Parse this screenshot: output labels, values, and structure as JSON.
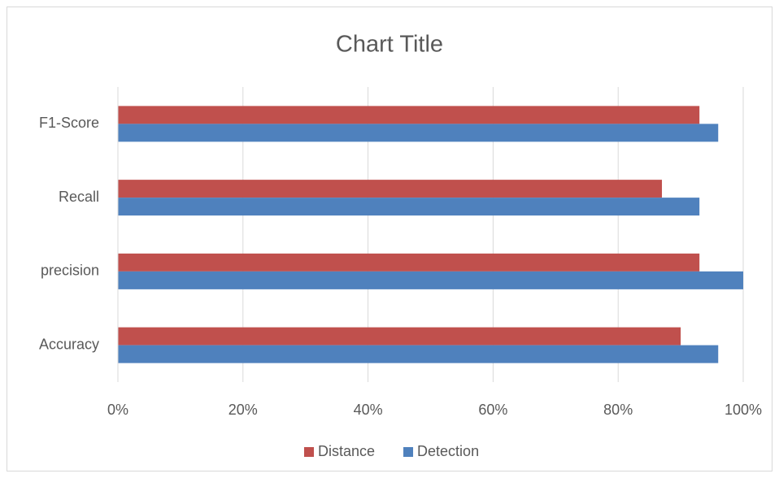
{
  "chart_data": {
    "type": "bar",
    "orientation": "horizontal",
    "title": "Chart Title",
    "categories": [
      "Accuracy",
      "precision",
      "Recall",
      "F1-Score"
    ],
    "series": [
      {
        "name": "Distance",
        "color": "#c0504d",
        "values": [
          90,
          93,
          87,
          93
        ]
      },
      {
        "name": "Detection",
        "color": "#4f81bd",
        "values": [
          96,
          100,
          93,
          96
        ]
      }
    ],
    "xlim": [
      0,
      100
    ],
    "xticks": [
      {
        "value": 0,
        "label": "0%"
      },
      {
        "value": 20,
        "label": "20%"
      },
      {
        "value": 40,
        "label": "40%"
      },
      {
        "value": 60,
        "label": "60%"
      },
      {
        "value": 80,
        "label": "80%"
      },
      {
        "value": 100,
        "label": "100%"
      }
    ],
    "grid": true,
    "legend": "bottom"
  }
}
